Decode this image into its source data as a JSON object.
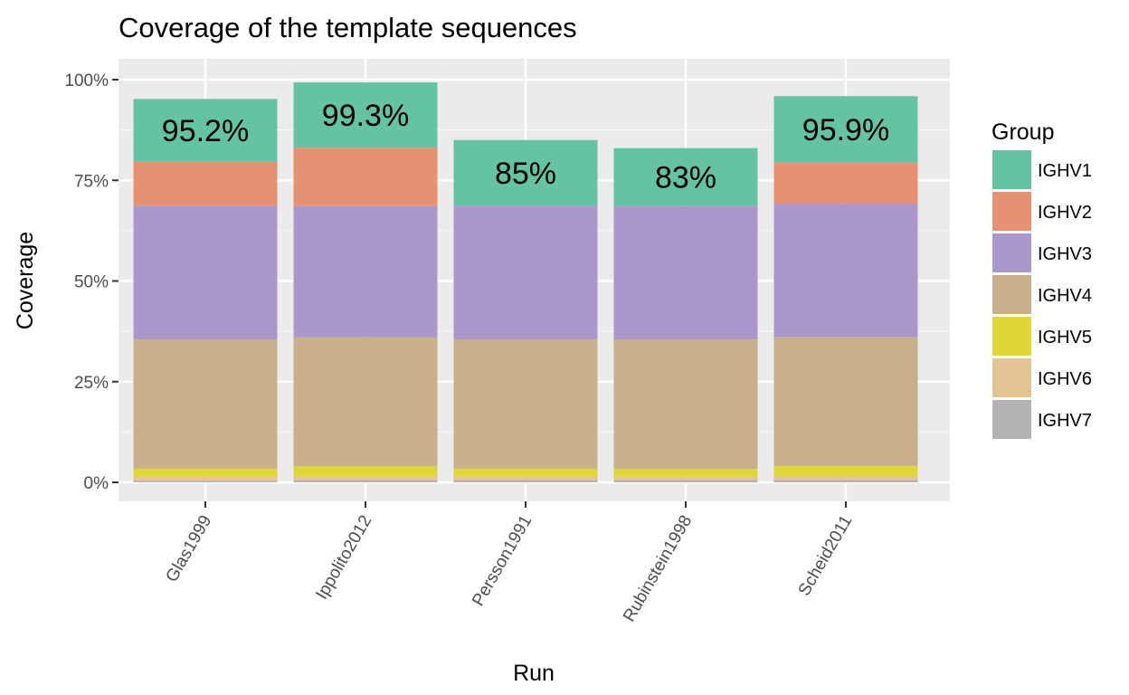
{
  "chart_data": {
    "type": "bar",
    "stacked": true,
    "title": "Coverage of the template sequences",
    "xlabel": "Run",
    "ylabel": "Coverage",
    "ylim": [
      0,
      100
    ],
    "yticks": [
      0,
      25,
      50,
      75,
      100
    ],
    "ytick_labels": [
      "0%",
      "25%",
      "50%",
      "75%",
      "100%"
    ],
    "categories": [
      "Glas1999",
      "Ippolito2012",
      "Persson1991",
      "Rubinstein1998",
      "Scheid2011"
    ],
    "totals": [
      95.2,
      99.3,
      85,
      83,
      95.9
    ],
    "total_labels": [
      "95.2%",
      "99.3%",
      "85%",
      "83%",
      "95.9%"
    ],
    "legend": {
      "title": "Group",
      "position": "right"
    },
    "grid": true,
    "series": [
      {
        "name": "IGHV7",
        "color": "#B3B3B3",
        "values": [
          0.4,
          0.6,
          0.6,
          0.6,
          0.6
        ]
      },
      {
        "name": "IGHV6",
        "color": "#E5C494",
        "values": [
          1.0,
          0.9,
          0.8,
          0.7,
          1.0
        ]
      },
      {
        "name": "IGHV5",
        "color": "#E0D63A",
        "values": [
          2.0,
          2.5,
          2.0,
          2.0,
          2.5
        ]
      },
      {
        "name": "IGHV4",
        "color": "#C7B08A",
        "values": [
          32.1,
          32.0,
          32.1,
          32.2,
          32.0
        ]
      },
      {
        "name": "IGHV3",
        "color": "#A998C9",
        "values": [
          33.2,
          32.6,
          33.2,
          33.1,
          33.1
        ]
      },
      {
        "name": "IGHV2",
        "color": "#E89072",
        "values": [
          10.9,
          14.5,
          0,
          0,
          10.2
        ]
      },
      {
        "name": "IGHV1",
        "color": "#66C2A5",
        "values": [
          15.6,
          16.2,
          16.3,
          14.4,
          16.5
        ]
      }
    ],
    "legend_order": [
      "IGHV1",
      "IGHV2",
      "IGHV3",
      "IGHV4",
      "IGHV5",
      "IGHV6",
      "IGHV7"
    ]
  }
}
